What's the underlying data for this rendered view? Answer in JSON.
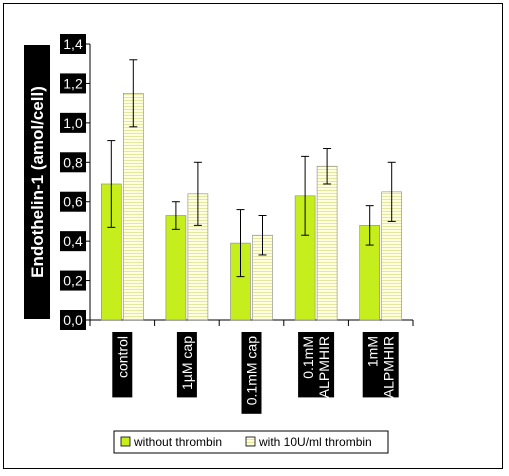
{
  "chart_data": {
    "type": "bar",
    "categories": [
      "control",
      "1µM cap",
      "0.1mM cap",
      "0.1mM\nALPMHIR",
      "1mM\nALPMHIR"
    ],
    "ylabel": "Endothelin-1 (amol/cell)",
    "xlabel": "",
    "ylim": [
      0,
      1.4
    ],
    "yticks": [
      "0,0",
      "0,2",
      "0,4",
      "0,6",
      "0,8",
      "1,0",
      "1,2",
      "1,4"
    ],
    "grid": false,
    "legend": "bottom",
    "series": [
      {
        "name": "without thrombin",
        "color": "#c6ee1c",
        "values": [
          0.69,
          0.53,
          0.39,
          0.63,
          0.48
        ],
        "errors": [
          0.22,
          0.07,
          0.17,
          0.2,
          0.1
        ]
      },
      {
        "name": "with 10U/ml thrombin",
        "color": "#ffffe0",
        "values": [
          1.15,
          0.64,
          0.43,
          0.78,
          0.65
        ],
        "errors": [
          0.17,
          0.16,
          0.1,
          0.09,
          0.15
        ]
      }
    ]
  }
}
